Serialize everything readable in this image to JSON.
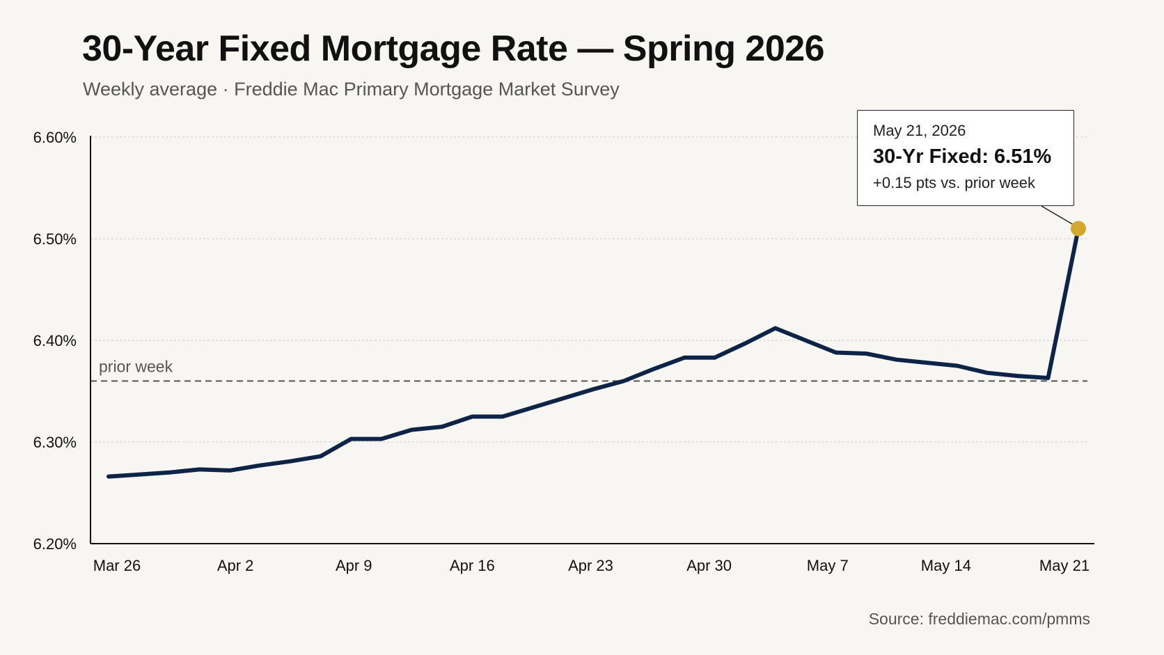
{
  "chart_data": {
    "type": "line",
    "title": "30-Year Fixed Mortgage Rate — Spring 2026",
    "subtitle": "Weekly average · Freddie Mac Primary Mortgage Market Survey",
    "source": "Source: freddiemac.com/pmms",
    "xlabel": "",
    "ylabel": "",
    "x_tick_labels": [
      "Mar 26",
      "Apr 2",
      "Apr 9",
      "Apr 16",
      "Apr 23",
      "Apr 30",
      "May 7",
      "May 14",
      "May 21"
    ],
    "y_tick_labels": [
      "6.20%",
      "6.30%",
      "6.40%",
      "6.50%",
      "6.60%"
    ],
    "ylim": [
      6.2,
      6.6
    ],
    "y_ticks": [
      6.2,
      6.3,
      6.4,
      6.5,
      6.6
    ],
    "grid": true,
    "series": [
      {
        "x": [
          "Mar 26",
          "",
          "",
          "",
          "Apr 2",
          "",
          "",
          "",
          "Apr 9",
          "",
          "",
          "",
          "Apr 16",
          "",
          "",
          "",
          "Apr 23",
          "",
          "",
          "",
          "Apr 30",
          "",
          "",
          "",
          "May 7",
          "",
          "",
          "",
          "May 14",
          "",
          "",
          "",
          "May 21"
        ],
        "values": [
          6.266,
          6.268,
          6.27,
          6.273,
          6.272,
          6.277,
          6.281,
          6.286,
          6.303,
          6.303,
          6.312,
          6.315,
          6.325,
          6.325,
          6.334,
          6.343,
          6.352,
          6.36,
          6.372,
          6.383,
          6.383,
          6.397,
          6.412,
          6.4,
          6.388,
          6.387,
          6.381,
          6.378,
          6.375,
          6.368,
          6.365,
          6.363,
          6.51
        ],
        "color": "#0e2447"
      }
    ],
    "reference_line": {
      "value": 6.36,
      "label": "prior week"
    },
    "highlight": {
      "date": "May 21, 2026",
      "value_text": "30-Yr Fixed: 6.51%",
      "change_text": "+0.15 pts vs. prior week",
      "value": 6.51,
      "marker_color": "#d4a82c"
    }
  }
}
